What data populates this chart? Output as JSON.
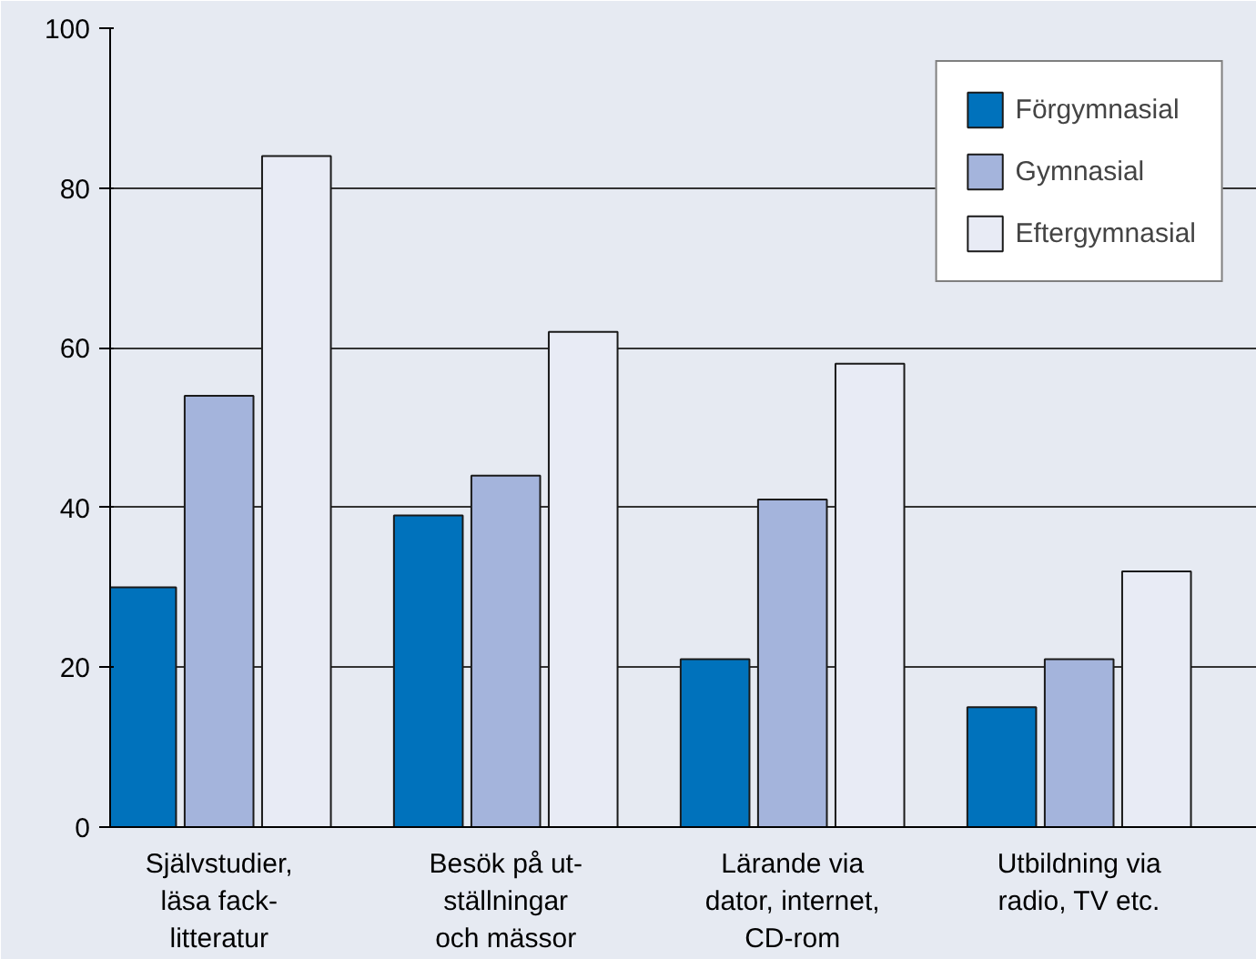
{
  "chart_data": {
    "type": "bar",
    "categories": [
      "Självstudier,\nläsa fack-\nlitteratur",
      "Besök på ut-\nställningar\noch mässor",
      "Lärande via\ndator, internet,\nCD-rom",
      "Utbildning via\nradio, TV etc."
    ],
    "series": [
      {
        "name": "Förgymnasial",
        "color": "#0072bc",
        "values": [
          30,
          39,
          21,
          15
        ]
      },
      {
        "name": "Gymnasial",
        "color": "#a4b4dc",
        "values": [
          54,
          44,
          41,
          21
        ]
      },
      {
        "name": "Eftergymnasial",
        "color": "#e8ebf5",
        "values": [
          84,
          62,
          58,
          32
        ]
      }
    ],
    "ylim": [
      0,
      100
    ],
    "yticks": [
      0,
      20,
      40,
      60,
      80,
      100
    ],
    "grid": "y",
    "legend": "top right"
  }
}
